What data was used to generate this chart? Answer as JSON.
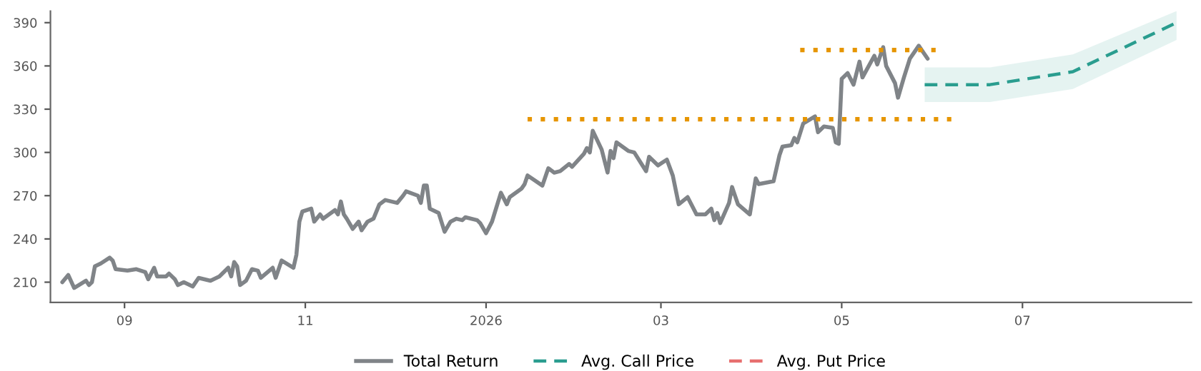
{
  "chart_data": {
    "type": "line",
    "xlim": [
      "2025-08-07",
      "2026-08-27"
    ],
    "ylim": [
      196,
      398
    ],
    "xticks": [
      {
        "value": "2025-09-01",
        "label": "09"
      },
      {
        "value": "2025-11-01",
        "label": "11"
      },
      {
        "value": "2026-01-01",
        "label": "2026"
      },
      {
        "value": "2026-03-01",
        "label": "03"
      },
      {
        "value": "2026-05-01",
        "label": "05"
      },
      {
        "value": "2026-07-01",
        "label": "07"
      }
    ],
    "yticks": [
      210,
      240,
      270,
      300,
      330,
      360,
      390
    ],
    "grid": false,
    "legend": "bottom",
    "series": [
      {
        "name": "Total Return",
        "color": "#808488",
        "line_style": "solid",
        "x": [
          "2025-08-11",
          "2025-08-13",
          "2025-08-15",
          "2025-08-19",
          "2025-08-20",
          "2025-08-21",
          "2025-08-22",
          "2025-08-24",
          "2025-08-27",
          "2025-08-28",
          "2025-08-29",
          "2025-09-02",
          "2025-09-05",
          "2025-09-08",
          "2025-09-09",
          "2025-09-11",
          "2025-09-12",
          "2025-09-15",
          "2025-09-16",
          "2025-09-18",
          "2025-09-19",
          "2025-09-21",
          "2025-09-24",
          "2025-09-26",
          "2025-09-30",
          "2025-10-03",
          "2025-10-06",
          "2025-10-07",
          "2025-10-08",
          "2025-10-09",
          "2025-10-10",
          "2025-10-12",
          "2025-10-14",
          "2025-10-16",
          "2025-10-17",
          "2025-10-21",
          "2025-10-22",
          "2025-10-24",
          "2025-10-28",
          "2025-10-29",
          "2025-10-30",
          "2025-10-31",
          "2025-11-03",
          "2025-11-04",
          "2025-11-06",
          "2025-11-07",
          "2025-11-11",
          "2025-11-12",
          "2025-11-13",
          "2025-11-14",
          "2025-11-15",
          "2025-11-17",
          "2025-11-19",
          "2025-11-20",
          "2025-11-22",
          "2025-11-24",
          "2025-11-26",
          "2025-11-28",
          "2025-12-02",
          "2025-12-04",
          "2025-12-05",
          "2025-12-09",
          "2025-12-10",
          "2025-12-11",
          "2025-12-12",
          "2025-12-13",
          "2025-12-16",
          "2025-12-18",
          "2025-12-20",
          "2025-12-22",
          "2025-12-24",
          "2025-12-25",
          "2025-12-29",
          "2025-12-30",
          "2026-01-01",
          "2026-01-03",
          "2026-01-06",
          "2026-01-08",
          "2026-01-09",
          "2026-01-13",
          "2026-01-14",
          "2026-01-15",
          "2026-01-20",
          "2026-01-22",
          "2026-01-24",
          "2026-01-26",
          "2026-01-29",
          "2026-01-30",
          "2026-02-03",
          "2026-02-04",
          "2026-02-05",
          "2026-02-06",
          "2026-02-09",
          "2026-02-11",
          "2026-02-12",
          "2026-02-13",
          "2026-02-14",
          "2026-02-18",
          "2026-02-20",
          "2026-02-24",
          "2026-02-25",
          "2026-02-28",
          "2026-03-03",
          "2026-03-05",
          "2026-03-07",
          "2026-03-10",
          "2026-03-13",
          "2026-03-16",
          "2026-03-18",
          "2026-03-19",
          "2026-03-20",
          "2026-03-21",
          "2026-03-24",
          "2026-03-25",
          "2026-03-27",
          "2026-03-31",
          "2026-04-02",
          "2026-04-03",
          "2026-04-08",
          "2026-04-10",
          "2026-04-11",
          "2026-04-14",
          "2026-04-15",
          "2026-04-16",
          "2026-04-18",
          "2026-04-22",
          "2026-04-23",
          "2026-04-25",
          "2026-04-28",
          "2026-04-29",
          "2026-04-30",
          "2026-05-01",
          "2026-05-03",
          "2026-05-05",
          "2026-05-07",
          "2026-05-08",
          "2026-05-12",
          "2026-05-13",
          "2026-05-15",
          "2026-05-16",
          "2026-05-19",
          "2026-05-20",
          "2026-05-22",
          "2026-05-24",
          "2026-05-27",
          "2026-05-30"
        ],
        "values": [
          210,
          215,
          206,
          211,
          208,
          210,
          221,
          223,
          227,
          225,
          219,
          218,
          219,
          217,
          212,
          220,
          214,
          214,
          216,
          212,
          208,
          210,
          207,
          213,
          211,
          214,
          220,
          214,
          224,
          221,
          208,
          211,
          219,
          218,
          213,
          220,
          213,
          225,
          220,
          229,
          252,
          259,
          261,
          252,
          257,
          254,
          260,
          257,
          266,
          257,
          254,
          247,
          252,
          246,
          252,
          254,
          264,
          267,
          265,
          270,
          273,
          270,
          265,
          277,
          277,
          261,
          258,
          245,
          252,
          254,
          253,
          255,
          253,
          251,
          244,
          252,
          272,
          264,
          269,
          275,
          278,
          284,
          277,
          289,
          286,
          287,
          292,
          290,
          299,
          303,
          300,
          315,
          302,
          286,
          301,
          296,
          307,
          301,
          300,
          287,
          297,
          291,
          295,
          284,
          264,
          269,
          257,
          257,
          261,
          253,
          258,
          251,
          265,
          276,
          264,
          257,
          282,
          278,
          280,
          298,
          304,
          305,
          310,
          307,
          320,
          325,
          314,
          318,
          317,
          307,
          306,
          351,
          355,
          347,
          363,
          352,
          367,
          361,
          373,
          360,
          348,
          338,
          352,
          365,
          374,
          365
        ]
      },
      {
        "name": "Avg. Call Price",
        "color": "#2a9d8f",
        "line_style": "dashed",
        "x": [
          "2026-05-29",
          "2026-06-20",
          "2026-07-18",
          "2026-08-22"
        ],
        "values": [
          347,
          347,
          356,
          390
        ],
        "lower": [
          335,
          335,
          344,
          378
        ],
        "upper": [
          359,
          359,
          368,
          398
        ]
      },
      {
        "name": "Avg. Put Price",
        "color": "#e76f6f",
        "line_style": "dashed"
      },
      {
        "color": "#e69500",
        "line_style": "dotted",
        "x": [
          "2026-01-15",
          "2026-06-08"
        ],
        "values": [
          323,
          323
        ]
      },
      {
        "color": "#e69500",
        "line_style": "dotted",
        "x": [
          "2026-04-17",
          "2026-06-03"
        ],
        "values": [
          371,
          371
        ]
      }
    ]
  }
}
